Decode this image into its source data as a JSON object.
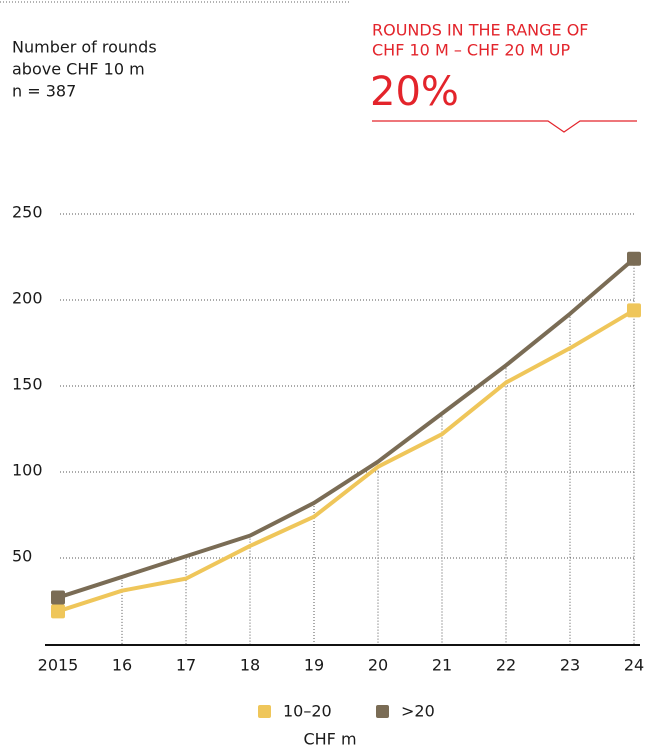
{
  "chart_data": {
    "type": "line",
    "note": [
      "Number of rounds",
      "above CHF 10 m",
      "n = 387"
    ],
    "callout": [
      "ROUNDS IN THE RANGE OF",
      "CHF 10 M – CHF 20 M UP"
    ],
    "highlight": "20%",
    "categories": [
      "2015",
      "16",
      "17",
      "18",
      "19",
      "20",
      "21",
      "22",
      "23",
      "24"
    ],
    "series": [
      {
        "name": "10–20",
        "color": "#efc65a",
        "values": [
          19,
          31,
          38,
          57,
          74,
          103,
          122,
          152,
          172,
          194
        ]
      },
      {
        "name": ">20",
        "color": "#7a6c55",
        "values": [
          27,
          39,
          51,
          63,
          82,
          106,
          134,
          162,
          192,
          224
        ]
      }
    ],
    "ylim": [
      0,
      250
    ],
    "yticks": [
      50,
      100,
      150,
      200,
      250
    ],
    "grid": true,
    "x_label": "CHF m"
  }
}
